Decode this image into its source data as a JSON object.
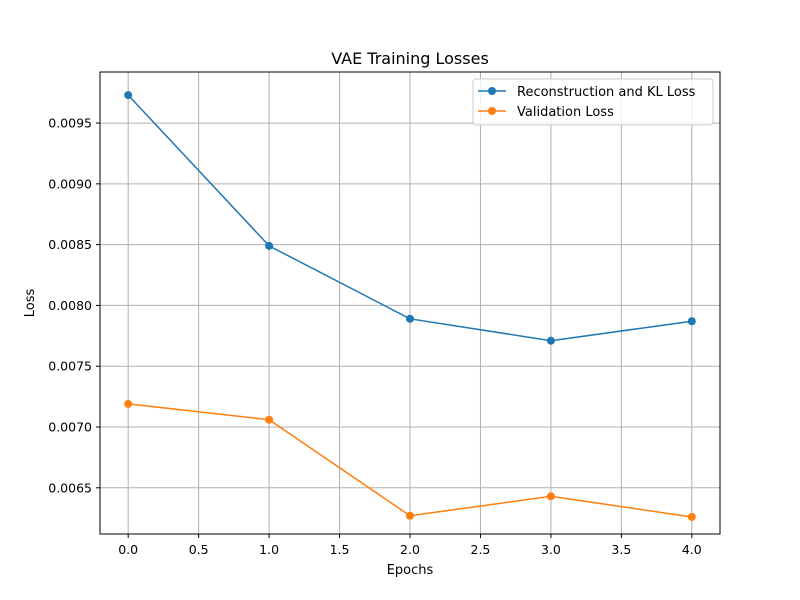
{
  "chart_data": {
    "type": "line",
    "title": "VAE Training Losses",
    "xlabel": "Epochs",
    "ylabel": "Loss",
    "x": [
      0,
      1,
      2,
      3,
      4
    ],
    "xlim": [
      -0.2,
      4.2
    ],
    "ylim": [
      0.00612,
      0.00992
    ],
    "xticks": [
      0.0,
      0.5,
      1.0,
      1.5,
      2.0,
      2.5,
      3.0,
      3.5,
      4.0
    ],
    "xtick_labels": [
      "0.0",
      "0.5",
      "1.0",
      "1.5",
      "2.0",
      "2.5",
      "3.0",
      "3.5",
      "4.0"
    ],
    "yticks": [
      0.0065,
      0.007,
      0.0075,
      0.008,
      0.0085,
      0.009,
      0.0095
    ],
    "ytick_labels": [
      "0.0065",
      "0.0070",
      "0.0075",
      "0.0080",
      "0.0085",
      "0.0090",
      "0.0095"
    ],
    "grid": true,
    "legend_position": "top-right",
    "series": [
      {
        "name": "Reconstruction and KL Loss",
        "color": "#1f77b4",
        "marker": "circle",
        "values": [
          0.00973,
          0.00849,
          0.00789,
          0.00771,
          0.00787
        ]
      },
      {
        "name": "Validation Loss",
        "color": "#ff7f0e",
        "marker": "circle",
        "values": [
          0.00719,
          0.00706,
          0.00627,
          0.00643,
          0.00626
        ]
      }
    ]
  }
}
